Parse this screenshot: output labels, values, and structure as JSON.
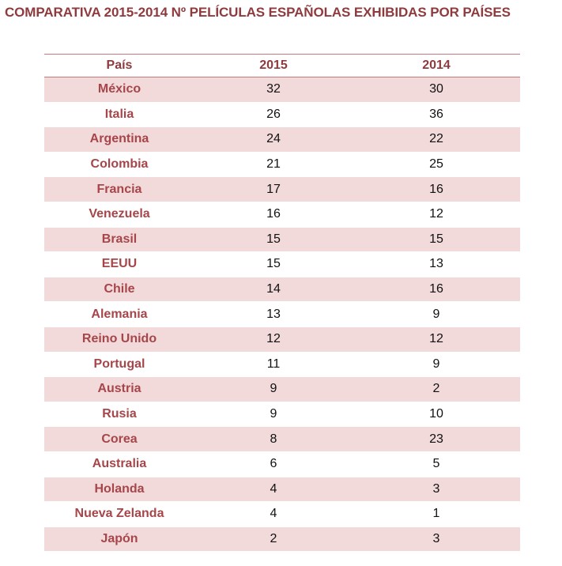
{
  "title": "COMPARATIVA 2015-2014 Nº PELÍCULAS ESPAÑOLAS EXHIBIDAS POR PAÍSES",
  "colors": {
    "title": "#8f3b3e",
    "country_text": "#a6464a",
    "row_shade": "#f2d9da",
    "rule": "#c9777a"
  },
  "table": {
    "headers": [
      "País",
      "2015",
      "2014"
    ],
    "rows": [
      {
        "country": "México",
        "y2015": "32",
        "y2014": "30"
      },
      {
        "country": "Italia",
        "y2015": "26",
        "y2014": "36"
      },
      {
        "country": "Argentina",
        "y2015": "24",
        "y2014": "22"
      },
      {
        "country": "Colombia",
        "y2015": "21",
        "y2014": "25"
      },
      {
        "country": "Francia",
        "y2015": "17",
        "y2014": "16"
      },
      {
        "country": "Venezuela",
        "y2015": "16",
        "y2014": "12"
      },
      {
        "country": "Brasil",
        "y2015": "15",
        "y2014": "15"
      },
      {
        "country": "EEUU",
        "y2015": "15",
        "y2014": "13"
      },
      {
        "country": "Chile",
        "y2015": "14",
        "y2014": "16"
      },
      {
        "country": "Alemania",
        "y2015": "13",
        "y2014": "9"
      },
      {
        "country": "Reino Unido",
        "y2015": "12",
        "y2014": "12"
      },
      {
        "country": "Portugal",
        "y2015": "11",
        "y2014": "9"
      },
      {
        "country": "Austria",
        "y2015": "9",
        "y2014": "2"
      },
      {
        "country": "Rusia",
        "y2015": "9",
        "y2014": "10"
      },
      {
        "country": "Corea",
        "y2015": "8",
        "y2014": "23"
      },
      {
        "country": "Australia",
        "y2015": "6",
        "y2014": "5"
      },
      {
        "country": "Holanda",
        "y2015": "4",
        "y2014": "3"
      },
      {
        "country": "Nueva Zelanda",
        "y2015": "4",
        "y2014": "1"
      },
      {
        "country": "Japón",
        "y2015": "2",
        "y2014": "3"
      }
    ]
  }
}
